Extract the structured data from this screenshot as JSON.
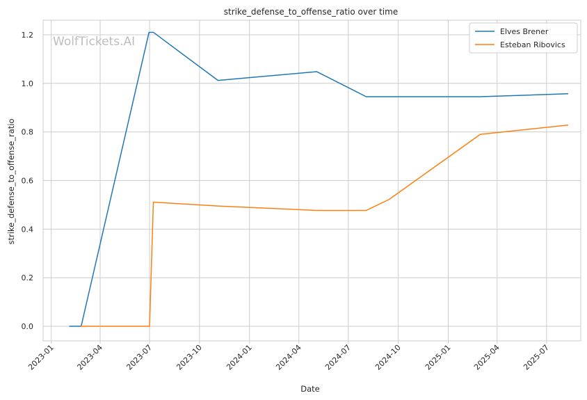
{
  "chart_data": {
    "type": "line",
    "title": "strike_defense_to_offense_ratio over time",
    "xlabel": "Date",
    "ylabel": "strike_defense_to_offense_ratio",
    "watermark": "WolfTickets.AI",
    "x_ticks": [
      "2023-01",
      "2023-04",
      "2023-07",
      "2023-10",
      "2024-01",
      "2024-04",
      "2024-07",
      "2024-10",
      "2025-01",
      "2025-04",
      "2025-07"
    ],
    "y_ticks": [
      "0.0",
      "0.2",
      "0.4",
      "0.6",
      "0.8",
      "1.0",
      "1.2"
    ],
    "xlim": [
      "2022-12-17",
      "2025-09-02"
    ],
    "ylim": [
      -0.06,
      1.26
    ],
    "grid": true,
    "legend_position": "top-right",
    "series": [
      {
        "name": "Elves Brener",
        "color": "#1f77b4",
        "points": [
          {
            "x": "2023-02-04",
            "y": 0.0
          },
          {
            "x": "2023-02-25",
            "y": 0.0
          },
          {
            "x": "2023-06-30",
            "y": 1.21
          },
          {
            "x": "2023-07-08",
            "y": 1.21
          },
          {
            "x": "2023-11-04",
            "y": 1.012
          },
          {
            "x": "2024-05-04",
            "y": 1.048
          },
          {
            "x": "2024-08-03",
            "y": 0.945
          },
          {
            "x": "2025-03-01",
            "y": 0.945
          },
          {
            "x": "2025-08-09",
            "y": 0.957
          }
        ]
      },
      {
        "name": "Esteban Ribovics",
        "color": "#ff7f0e",
        "points": [
          {
            "x": "2023-02-25",
            "y": 0.0
          },
          {
            "x": "2023-07-01",
            "y": 0.0
          },
          {
            "x": "2023-07-08",
            "y": 0.511
          },
          {
            "x": "2023-11-04",
            "y": 0.495
          },
          {
            "x": "2024-05-04",
            "y": 0.477
          },
          {
            "x": "2024-08-03",
            "y": 0.477
          },
          {
            "x": "2024-09-14",
            "y": 0.522
          },
          {
            "x": "2025-03-01",
            "y": 0.79
          },
          {
            "x": "2025-08-09",
            "y": 0.828
          }
        ]
      }
    ]
  }
}
